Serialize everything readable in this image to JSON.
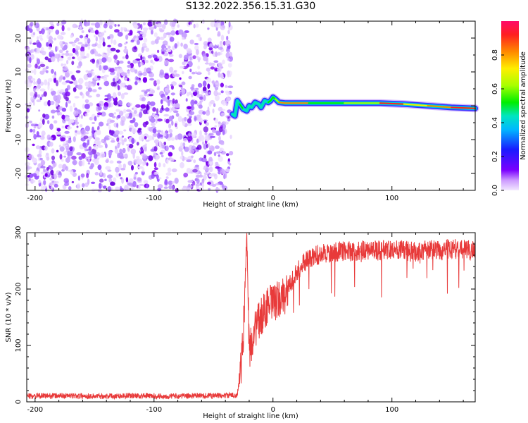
{
  "figure": {
    "title": "S132.2022.356.15.31.G30"
  },
  "chart_data": [
    {
      "type": "heatmap",
      "xlabel": "Height of straight line (km)",
      "ylabel": "Frequency (Hz)",
      "xlim": [
        -207,
        170
      ],
      "ylim": [
        -25,
        25
      ],
      "xticks": [
        -200,
        -100,
        0,
        100
      ],
      "yticks": [
        -20,
        -10,
        0,
        10,
        20
      ],
      "colorbar": {
        "label": "Normalized spectral amplitude",
        "range": [
          0,
          1
        ],
        "ticks": [
          0.0,
          0.2,
          0.4,
          0.6,
          0.8
        ]
      },
      "noise_region_x": [
        -207,
        -35
      ],
      "signal_track": {
        "x": [
          -34,
          -32,
          -30,
          -28,
          -25,
          -22,
          -20,
          -18,
          -15,
          -12,
          -10,
          -7,
          -4,
          -2,
          0,
          2,
          5,
          10,
          30,
          60,
          90,
          110,
          130,
          150,
          170
        ],
        "freq": [
          -2.5,
          -3.0,
          1.5,
          0.5,
          -1.0,
          -1.5,
          0.0,
          -0.5,
          1.0,
          0.5,
          -0.5,
          1.5,
          1.0,
          1.5,
          2.5,
          2.0,
          1.0,
          0.8,
          0.8,
          0.8,
          0.8,
          0.5,
          0.0,
          -0.5,
          -0.8
        ],
        "amplitude": [
          0.45,
          0.5,
          0.5,
          0.55,
          0.45,
          0.5,
          0.45,
          0.5,
          0.45,
          0.5,
          0.45,
          0.5,
          0.55,
          0.55,
          0.6,
          0.7,
          0.9,
          0.85,
          0.6,
          0.7,
          0.95,
          0.75,
          0.9,
          0.95,
          0.7
        ]
      }
    },
    {
      "type": "line",
      "xlabel": "Height of straight line (km)",
      "ylabel": "SNR (10 * v/v)",
      "xlim": [
        -207,
        170
      ],
      "ylim": [
        0,
        300
      ],
      "xticks": [
        -200,
        -100,
        0,
        100
      ],
      "yticks": [
        0,
        100,
        200,
        300
      ],
      "line_color": "#e83a3a",
      "series": [
        {
          "x": [
            -207,
            -180,
            -150,
            -120,
            -90,
            -60,
            -40,
            -30,
            -27,
            -25,
            -22,
            -20,
            -15,
            -10,
            -5,
            0,
            5,
            10,
            15,
            20,
            25,
            30,
            40,
            50,
            60,
            70,
            80,
            90,
            100,
            110,
            120,
            130,
            140,
            150,
            160,
            170
          ],
          "values": [
            10,
            11,
            10,
            11,
            10,
            11,
            11,
            12,
            60,
            110,
            300,
            90,
            130,
            150,
            170,
            175,
            180,
            190,
            210,
            230,
            245,
            255,
            262,
            265,
            268,
            266,
            270,
            268,
            272,
            268,
            265,
            270,
            268,
            272,
            270,
            268
          ]
        }
      ]
    }
  ]
}
